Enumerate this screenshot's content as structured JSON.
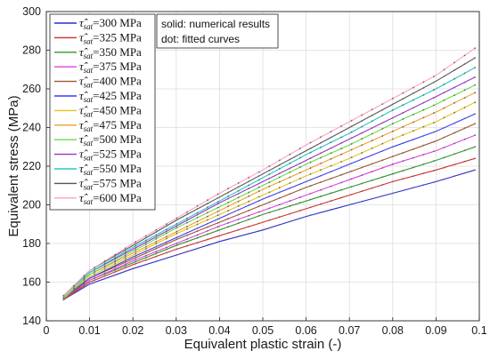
{
  "chart_data": {
    "type": "line",
    "xlabel": "Equivalent plastic strain (-)",
    "ylabel": "Equivalent stress (MPa)",
    "xlim": [
      0,
      0.1
    ],
    "ylim": [
      140,
      300
    ],
    "xticks": [
      "0",
      "0.01",
      "0.02",
      "0.03",
      "0.04",
      "0.05",
      "0.06",
      "0.07",
      "0.08",
      "0.09",
      "0.1"
    ],
    "yticks": [
      "140",
      "160",
      "180",
      "200",
      "220",
      "240",
      "260",
      "280",
      "300"
    ],
    "grid": true,
    "legend_position": "top-left",
    "legend_symbol": "τ̂",
    "legend_subscript": "sat",
    "annotation": [
      "solid: numerical results",
      "dot: fitted curves"
    ],
    "x": [
      0.004,
      0.01,
      0.02,
      0.03,
      0.04,
      0.05,
      0.06,
      0.07,
      0.08,
      0.09,
      0.099
    ],
    "series": [
      {
        "name": "=300 MPa",
        "color": "#2b2bd6",
        "values": [
          151,
          159,
          167,
          174,
          181,
          187,
          194,
          200,
          206,
          212,
          218
        ]
      },
      {
        "name": "=325 MPa",
        "color": "#d62b2b",
        "values": [
          151,
          160,
          169,
          177,
          184,
          191,
          198,
          205,
          212,
          218,
          224
        ]
      },
      {
        "name": "=350 MPa",
        "color": "#2b9a2b",
        "values": [
          151,
          161,
          170,
          179,
          187,
          195,
          202,
          209,
          216,
          223,
          230
        ]
      },
      {
        "name": "=375 MPa",
        "color": "#e040e0",
        "values": [
          151,
          161,
          171,
          180,
          189,
          197,
          205,
          213,
          221,
          228,
          236
        ]
      },
      {
        "name": "=400 MPa",
        "color": "#a0522d",
        "values": [
          151,
          162,
          172,
          182,
          191,
          200,
          209,
          217,
          225,
          233,
          242
        ]
      },
      {
        "name": "=425 MPa",
        "color": "#3a3aff",
        "values": [
          152,
          162,
          173,
          183,
          193,
          203,
          212,
          221,
          230,
          238,
          247
        ]
      },
      {
        "name": "=450 MPa",
        "color": "#e6c31e",
        "values": [
          152,
          163,
          174,
          185,
          195,
          205,
          215,
          224,
          234,
          243,
          253
        ]
      },
      {
        "name": "=475 MPa",
        "color": "#f0a030",
        "values": [
          152,
          164,
          175,
          186,
          197,
          208,
          218,
          228,
          238,
          248,
          258
        ]
      },
      {
        "name": "=500 MPa",
        "color": "#66dd44",
        "values": [
          152,
          164,
          176,
          188,
          199,
          210,
          221,
          231,
          242,
          252,
          262
        ]
      },
      {
        "name": "=525 MPa",
        "color": "#9933cc",
        "values": [
          153,
          165,
          177,
          189,
          201,
          212,
          223,
          234,
          245,
          256,
          266
        ]
      },
      {
        "name": "=550 MPa",
        "color": "#22c8c8",
        "values": [
          153,
          165,
          178,
          190,
          202,
          214,
          226,
          237,
          249,
          260,
          271
        ]
      },
      {
        "name": "=575 MPa",
        "color": "#555555",
        "values": [
          153,
          166,
          179,
          192,
          204,
          216,
          228,
          240,
          252,
          264,
          276
        ]
      },
      {
        "name": "=600 MPa",
        "color": "#ff9ec8",
        "values": [
          153,
          166,
          180,
          193,
          206,
          218,
          231,
          243,
          255,
          267,
          281
        ]
      }
    ]
  }
}
